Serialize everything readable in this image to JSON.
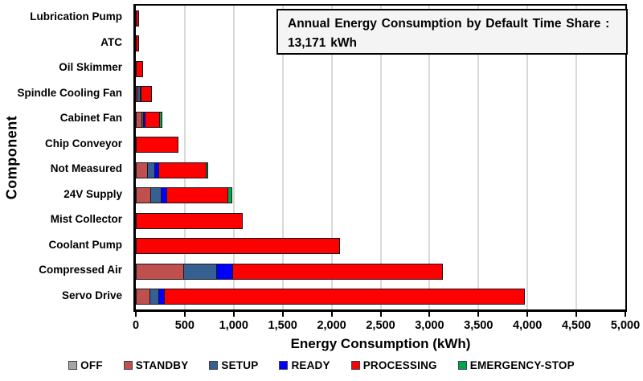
{
  "chart_data": {
    "type": "bar",
    "orientation": "horizontal",
    "stacked": true,
    "xlabel": "Energy Consumption (kWh)",
    "ylabel": "Component",
    "xlim": [
      0,
      5000
    ],
    "xticks": [
      0,
      500,
      1000,
      1500,
      2000,
      2500,
      3000,
      3500,
      4000,
      4500,
      5000
    ],
    "xtick_labels": [
      "0",
      "500",
      "1,000",
      "1,500",
      "2,000",
      "2,500",
      "3,000",
      "3,500",
      "4,000",
      "4,500",
      "5,000"
    ],
    "grid": "vertical",
    "gridline_color": "#D9D9D9",
    "legend_position": "bottom",
    "annotation": {
      "line1": "Annual Energy Consumption by Default Time Share :",
      "line2": "13,171 kWh",
      "total_kwh": 13171
    },
    "categories": [
      "Lubrication Pump",
      "ATC",
      "Oil Skimmer",
      "Spindle Cooling Fan",
      "Cabinet Fan",
      "Chip Conveyor",
      "Not Measured",
      "24V Supply",
      "Mist Collector",
      "Coolant Pump",
      "Compressed Air",
      "Servo Drive"
    ],
    "series": [
      {
        "name": "OFF",
        "color": "#A6A6A6",
        "values": [
          0,
          0,
          0,
          0,
          0,
          0,
          0,
          0,
          0,
          0,
          0,
          0
        ]
      },
      {
        "name": "STANDBY",
        "color": "#C0504D",
        "values": [
          0,
          0,
          0,
          25,
          65,
          0,
          120,
          160,
          0,
          0,
          490,
          150
        ]
      },
      {
        "name": "SETUP",
        "color": "#376092",
        "values": [
          0,
          0,
          0,
          35,
          25,
          0,
          85,
          110,
          0,
          0,
          345,
          95
        ]
      },
      {
        "name": "READY",
        "color": "#0000FF",
        "values": [
          0,
          0,
          0,
          15,
          25,
          0,
          50,
          65,
          0,
          0,
          175,
          65
        ]
      },
      {
        "name": "PROCESSING",
        "color": "#FF0000",
        "values": [
          30,
          30,
          70,
          115,
          160,
          435,
          490,
          635,
          1090,
          2085,
          2150,
          3690
        ]
      },
      {
        "name": "EMERGENCY-STOP",
        "color": "#00A54F",
        "values": [
          0,
          0,
          0,
          0,
          30,
          0,
          30,
          45,
          0,
          0,
          0,
          0
        ]
      }
    ]
  },
  "colors": {
    "axis": "#000000",
    "plot_background": "#FFFFFF",
    "annotation_background": "#F4F4F4"
  }
}
